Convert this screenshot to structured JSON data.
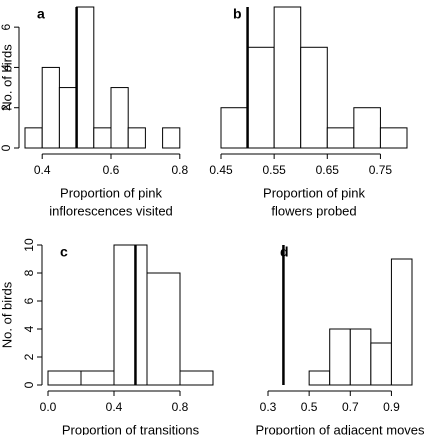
{
  "chart_data": [
    {
      "type": "histogram",
      "title": "a",
      "ylabel": "No. of birds",
      "xlabel": [
        "Proportion of pink",
        "inflorescences visited"
      ],
      "bins": [
        0.35,
        0.4,
        0.45,
        0.5,
        0.55,
        0.6,
        0.65,
        0.7,
        0.75,
        0.8
      ],
      "values": [
        1,
        4,
        3,
        7,
        1,
        3,
        1,
        0,
        1
      ],
      "reference_line": 0.5,
      "xlim": [
        0.35,
        0.85
      ],
      "xticks": [
        {
          "value": 0.4,
          "label": "0.4"
        },
        {
          "value": 0.6,
          "label": "0.6"
        },
        {
          "value": 0.8,
          "label": "0.8"
        }
      ],
      "ylim": [
        0,
        7
      ],
      "yticks": [
        0,
        2,
        4,
        6
      ]
    },
    {
      "type": "histogram",
      "title": "b",
      "xlabel": [
        "Proportion of pink",
        "flowers probed"
      ],
      "bins": [
        0.45,
        0.5,
        0.55,
        0.6,
        0.65,
        0.7,
        0.75,
        0.8
      ],
      "values": [
        2,
        5,
        7,
        5,
        1,
        2,
        1
      ],
      "reference_line": 0.5,
      "xlim": [
        0.45,
        0.8
      ],
      "xticks": [
        0.45,
        0.55,
        0.65,
        0.75
      ],
      "ylim": [
        0,
        7
      ]
    },
    {
      "type": "histogram",
      "title": "c",
      "ylabel": "No. of birds",
      "xlabel": [
        "Proportion of transitions"
      ],
      "bins": [
        0,
        0.2,
        0.4,
        0.6,
        0.8,
        1
      ],
      "values": [
        1,
        1,
        10,
        8,
        1
      ],
      "reference_line": 0.53,
      "xlim": [
        0,
        1
      ],
      "xticks": [
        {
          "value": 0,
          "label": "0.0"
        },
        0.4,
        0.8
      ],
      "ylim": [
        0,
        10
      ],
      "yticks": [
        0,
        2,
        4,
        6,
        8,
        10
      ]
    },
    {
      "type": "histogram",
      "title": "d",
      "xlabel": [
        "Proportion of adjacent moves"
      ],
      "bins": [
        0.5,
        0.6,
        0.7,
        0.8,
        0.9,
        1
      ],
      "values": [
        1,
        4,
        4,
        3,
        9
      ],
      "reference_line": 0.375,
      "xlim": [
        0.3,
        1
      ],
      "xticks": [
        0.3,
        0.5,
        0.7,
        0.9
      ],
      "ylim": [
        0,
        10
      ]
    }
  ]
}
